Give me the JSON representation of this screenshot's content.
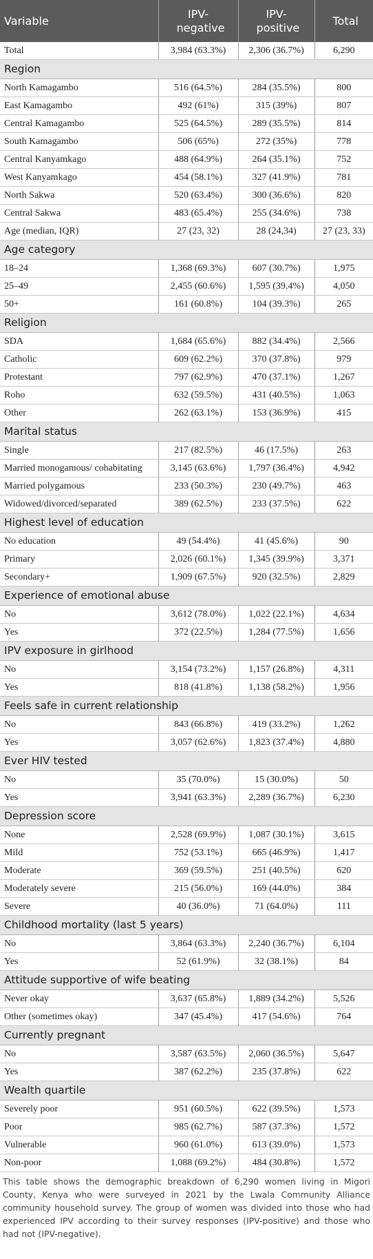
{
  "table": {
    "header": [
      "Variable",
      "IPV-negative",
      "IPV-positive",
      "Total"
    ],
    "total_row": [
      "Total",
      "3,984 (63.3%)",
      "2,306 (36.7%)",
      "6,290"
    ],
    "sections": [
      {
        "title": "Region",
        "rows": [
          [
            "North Kamagambo",
            "516 (64.5%)",
            "284 (35.5%)",
            "800"
          ],
          [
            "East Kamagambo",
            "492 (61%)",
            "315 (39%)",
            "807"
          ],
          [
            "Central Kamagambo",
            "525 (64.5%)",
            "289 (35.5%)",
            "814"
          ],
          [
            "South Kamagambo",
            "506 (65%)",
            "272 (35%)",
            "778"
          ],
          [
            "Central Kanyamkago",
            "488 (64.9%)",
            "264 (35.1%)",
            "752"
          ],
          [
            "West Kanyamkago",
            "454 (58.1%)",
            "327 (41.9%)",
            "781"
          ],
          [
            "North Sakwa",
            "520 (63.4%)",
            "300 (36.6%)",
            "820"
          ],
          [
            "Central Sakwa",
            "483 (65.4%)",
            "255 (34.6%)",
            "738"
          ],
          [
            "Age (median, IQR)",
            "27 (23, 32)",
            "28 (24,34)",
            "27 (23, 33)"
          ]
        ]
      },
      {
        "title": "Age category",
        "rows": [
          [
            "18–24",
            "1,368 (69.3%)",
            "607 (30.7%)",
            "1,975"
          ],
          [
            "25–49",
            "2,455 (60.6%)",
            "1,595 (39.4%)",
            "4,050"
          ],
          [
            "50+",
            "161 (60.8%)",
            "104 (39.3%)",
            "265"
          ]
        ]
      },
      {
        "title": "Religion",
        "rows": [
          [
            "SDA",
            "1,684 (65.6%)",
            "882 (34.4%)",
            "2,566"
          ],
          [
            "Catholic",
            "609 (62.2%)",
            "370 (37.8%)",
            "979"
          ],
          [
            "Protestant",
            "797 (62.9%)",
            "470 (37.1%)",
            "1,267"
          ],
          [
            "Roho",
            "632 (59.5%)",
            "431 (40.5%)",
            "1,063"
          ],
          [
            "Other",
            "262 (63.1%)",
            "153 (36.9%)",
            "415"
          ]
        ]
      },
      {
        "title": "Marital status",
        "rows": [
          [
            "Single",
            "217 (82.5%)",
            "46 (17.5%)",
            "263"
          ],
          [
            "Married monogamous/ cohabitating",
            "3,145 (63.6%)",
            "1,797 (36.4%)",
            "4,942"
          ],
          [
            "Married polygamous",
            "233 (50.3%)",
            "230 (49.7%)",
            "463"
          ],
          [
            "Widowed/divorced/separated",
            "389 (62.5%)",
            "233 (37.5%)",
            "622"
          ]
        ]
      },
      {
        "title": "Highest level of education",
        "rows": [
          [
            "No education",
            "49 (54.4%)",
            "41 (45.6%)",
            "90"
          ],
          [
            "Primary",
            "2,026 (60.1%)",
            "1,345 (39.9%)",
            "3,371"
          ],
          [
            "Secondary+",
            "1,909 (67.5%)",
            "920 (32.5%)",
            "2,829"
          ]
        ]
      },
      {
        "title": "Experience of emotional abuse",
        "rows": [
          [
            "No",
            "3,612 (78.0%)",
            "1,022 (22.1%)",
            "4,634"
          ],
          [
            "Yes",
            "372 (22.5%)",
            "1,284 (77.5%)",
            "1,656"
          ]
        ]
      },
      {
        "title": "IPV exposure in girlhood",
        "rows": [
          [
            "No",
            "3,154 (73.2%)",
            "1,157 (26.8%)",
            "4,311"
          ],
          [
            "Yes",
            "818 (41.8%)",
            "1,138 (58.2%)",
            "1,956"
          ]
        ]
      },
      {
        "title": "Feels safe in current relationship",
        "rows": [
          [
            "No",
            "843 (66.8%)",
            "419 (33.2%)",
            "1,262"
          ],
          [
            "Yes",
            "3,057 (62.6%)",
            "1,823 (37.4%)",
            "4,880"
          ]
        ]
      },
      {
        "title": "Ever HIV tested",
        "rows": [
          [
            "No",
            "35 (70.0%)",
            "15 (30.0%)",
            "50"
          ],
          [
            "Yes",
            "3,941 (63.3%)",
            "2,289 (36.7%)",
            "6,230"
          ]
        ]
      },
      {
        "title": "Depression score",
        "rows": [
          [
            "None",
            "2,528 (69.9%)",
            "1,087 (30.1%)",
            "3,615"
          ],
          [
            "Mild",
            "752 (53.1%)",
            "665 (46.9%)",
            "1,417"
          ],
          [
            "Moderate",
            "369 (59.5%)",
            "251 (40.5%)",
            "620"
          ],
          [
            "Moderately severe",
            "215 (56.0%)",
            "169 (44.0%)",
            "384"
          ],
          [
            "Severe",
            "40 (36.0%)",
            "71 (64.0%)",
            "111"
          ]
        ]
      },
      {
        "title": "Childhood mortality (last 5 years)",
        "rows": [
          [
            "No",
            "3,864 (63.3%)",
            "2,240 (36.7%)",
            "6,104"
          ],
          [
            "Yes",
            "52 (61.9%)",
            "32 (38.1%)",
            "84"
          ]
        ]
      },
      {
        "title": "Attitude supportive of wife beating",
        "rows": [
          [
            "Never okay",
            "3,637 (65.8%)",
            "1,889 (34.2%)",
            "5,526"
          ],
          [
            "Other (sometimes okay)",
            "347 (45.4%)",
            "417 (54.6%)",
            "764"
          ]
        ]
      },
      {
        "title": "Currently pregnant",
        "rows": [
          [
            "No",
            "3,587 (63.5%)",
            "2,060 (36.5%)",
            "5,647"
          ],
          [
            "Yes",
            "387 (62.2%)",
            "235 (37.8%)",
            "622"
          ]
        ]
      },
      {
        "title": "Wealth quartile",
        "rows": [
          [
            "Severely poor",
            "951 (60.5%)",
            "622 (39.5%)",
            "1,573"
          ],
          [
            "Poor",
            "985 (62.7%)",
            "587 (37.3%)",
            "1,572"
          ],
          [
            "Vulnerable",
            "960 (61.0%)",
            "613 (39.0%)",
            "1,573"
          ],
          [
            "Non-poor",
            "1,088 (69.2%)",
            "484 (30.8%)",
            "1,572"
          ]
        ]
      }
    ]
  },
  "footnote": "This table shows the demographic breakdown of 6,290 women living in Migori County, Kenya who were surveyed in 2021 by the Lwala Community Alliance community household survey. The group of women was divided into those who had experienced IPV according to their survey responses (IPV-positive) and those who had not (IPV-negative)."
}
